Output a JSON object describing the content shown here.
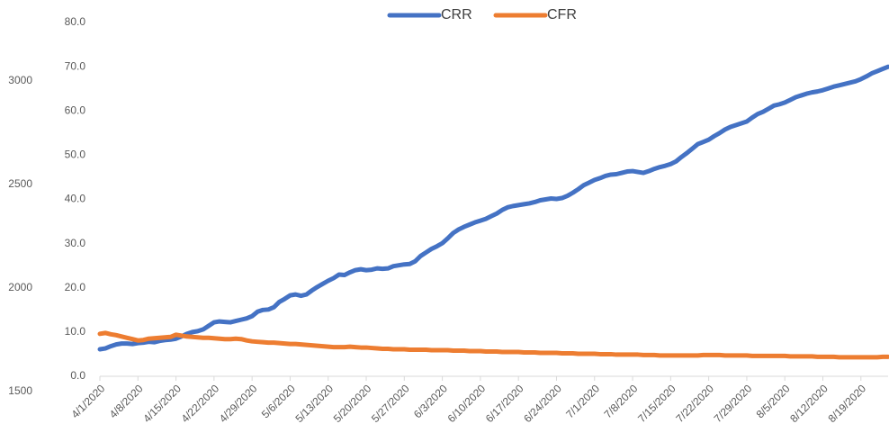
{
  "chart_data": {
    "type": "line",
    "categories": [
      "4/1/2020",
      null,
      null,
      null,
      null,
      null,
      null,
      "4/8/2020",
      null,
      null,
      null,
      null,
      null,
      null,
      "4/15/2020",
      null,
      null,
      null,
      null,
      null,
      null,
      "4/22/2020",
      null,
      null,
      null,
      null,
      null,
      null,
      "4/29/2020",
      null,
      null,
      null,
      null,
      null,
      null,
      "5/6/2020",
      null,
      null,
      null,
      null,
      null,
      null,
      "5/13/2020",
      null,
      null,
      null,
      null,
      null,
      null,
      "5/20/2020",
      null,
      null,
      null,
      null,
      null,
      null,
      "5/27/2020",
      null,
      null,
      null,
      null,
      null,
      null,
      "6/3/2020",
      null,
      null,
      null,
      null,
      null,
      null,
      "6/10/2020",
      null,
      null,
      null,
      null,
      null,
      null,
      "6/17/2020",
      null,
      null,
      null,
      null,
      null,
      null,
      "6/24/2020",
      null,
      null,
      null,
      null,
      null,
      null,
      "7/1/2020",
      null,
      null,
      null,
      null,
      null,
      null,
      "7/8/2020",
      null,
      null,
      null,
      null,
      null,
      null,
      "7/15/2020",
      null,
      null,
      null,
      null,
      null,
      null,
      "7/22/2020",
      null,
      null,
      null,
      null,
      null,
      null,
      "7/29/2020",
      null,
      null,
      null,
      null,
      null,
      null,
      "8/5/2020",
      null,
      null,
      null,
      null,
      null,
      null,
      "8/12/2020",
      null,
      null,
      null,
      null,
      null,
      null,
      "8/19/2020",
      null,
      null,
      null,
      null,
      null
    ],
    "series": [
      {
        "name": "CRR",
        "color": "#4472c4",
        "values": [
          6.1,
          6.3,
          6.8,
          7.2,
          7.4,
          7.4,
          7.3,
          7.5,
          7.6,
          7.8,
          7.7,
          8.0,
          8.2,
          8.3,
          8.5,
          9.0,
          9.6,
          10.0,
          10.2,
          10.6,
          11.4,
          12.2,
          12.4,
          12.3,
          12.2,
          12.5,
          12.8,
          13.1,
          13.6,
          14.6,
          15.0,
          15.1,
          15.6,
          16.8,
          17.5,
          18.3,
          18.5,
          18.2,
          18.5,
          19.4,
          20.2,
          20.9,
          21.6,
          22.2,
          23.0,
          22.9,
          23.5,
          24.0,
          24.2,
          24.0,
          24.1,
          24.4,
          24.3,
          24.4,
          24.9,
          25.1,
          25.3,
          25.4,
          26.0,
          27.2,
          28.0,
          28.8,
          29.4,
          30.1,
          31.2,
          32.4,
          33.2,
          33.8,
          34.3,
          34.8,
          35.2,
          35.6,
          36.2,
          36.8,
          37.6,
          38.2,
          38.5,
          38.7,
          38.9,
          39.1,
          39.4,
          39.8,
          40.0,
          40.2,
          40.1,
          40.3,
          40.8,
          41.5,
          42.3,
          43.2,
          43.8,
          44.4,
          44.8,
          45.3,
          45.6,
          45.7,
          46.0,
          46.3,
          46.4,
          46.2,
          46.0,
          46.4,
          46.9,
          47.3,
          47.6,
          48.0,
          48.6,
          49.6,
          50.5,
          51.5,
          52.5,
          53.0,
          53.5,
          54.3,
          55.0,
          55.8,
          56.4,
          56.8,
          57.2,
          57.6,
          58.5,
          59.3,
          59.8,
          60.5,
          61.2,
          61.5,
          61.9,
          62.5,
          63.1,
          63.5,
          63.9,
          64.2,
          64.4,
          64.7,
          65.1,
          65.5,
          65.8,
          66.1,
          66.4,
          66.7,
          67.2,
          67.8,
          68.5,
          69.0,
          69.5,
          70.0
        ]
      },
      {
        "name": "CFR",
        "color": "#ed7d31",
        "values": [
          9.6,
          9.8,
          9.5,
          9.3,
          9.0,
          8.7,
          8.4,
          8.1,
          8.2,
          8.5,
          8.6,
          8.7,
          8.8,
          8.9,
          9.4,
          9.2,
          9.0,
          8.9,
          8.8,
          8.7,
          8.7,
          8.6,
          8.5,
          8.4,
          8.4,
          8.5,
          8.4,
          8.1,
          7.9,
          7.8,
          7.7,
          7.6,
          7.6,
          7.5,
          7.4,
          7.3,
          7.3,
          7.2,
          7.1,
          7.0,
          6.9,
          6.8,
          6.7,
          6.6,
          6.6,
          6.6,
          6.7,
          6.6,
          6.5,
          6.5,
          6.4,
          6.3,
          6.2,
          6.2,
          6.1,
          6.1,
          6.1,
          6.0,
          6.0,
          6.0,
          6.0,
          5.9,
          5.9,
          5.9,
          5.9,
          5.8,
          5.8,
          5.8,
          5.7,
          5.7,
          5.7,
          5.6,
          5.6,
          5.6,
          5.5,
          5.5,
          5.5,
          5.5,
          5.4,
          5.4,
          5.4,
          5.3,
          5.3,
          5.3,
          5.3,
          5.2,
          5.2,
          5.2,
          5.1,
          5.1,
          5.1,
          5.1,
          5.0,
          5.0,
          5.0,
          4.9,
          4.9,
          4.9,
          4.9,
          4.9,
          4.8,
          4.8,
          4.8,
          4.7,
          4.7,
          4.7,
          4.7,
          4.7,
          4.7,
          4.7,
          4.7,
          4.8,
          4.8,
          4.8,
          4.8,
          4.7,
          4.7,
          4.7,
          4.7,
          4.7,
          4.6,
          4.6,
          4.6,
          4.6,
          4.6,
          4.6,
          4.6,
          4.5,
          4.5,
          4.5,
          4.5,
          4.5,
          4.4,
          4.4,
          4.4,
          4.4,
          4.3,
          4.3,
          4.3,
          4.3,
          4.3,
          4.3,
          4.3,
          4.3,
          4.4,
          4.4
        ]
      }
    ],
    "ylim": [
      0,
      80
    ],
    "yticks": [
      {
        "value": 0,
        "label": "0.0"
      },
      {
        "value": 10,
        "label": "10.0"
      },
      {
        "value": 20,
        "label": "20.0"
      },
      {
        "value": 30,
        "label": "30.0"
      },
      {
        "value": 40,
        "label": "40.0"
      },
      {
        "value": 50,
        "label": "50.0"
      },
      {
        "value": 60,
        "label": "60.0"
      },
      {
        "value": 70,
        "label": "70.0"
      },
      {
        "value": 80,
        "label": "80.0"
      }
    ],
    "y2lim": [
      1500,
      3000
    ],
    "y2ticks": [
      1500,
      2000,
      2500,
      3000
    ],
    "grid": false,
    "legend": "top"
  }
}
